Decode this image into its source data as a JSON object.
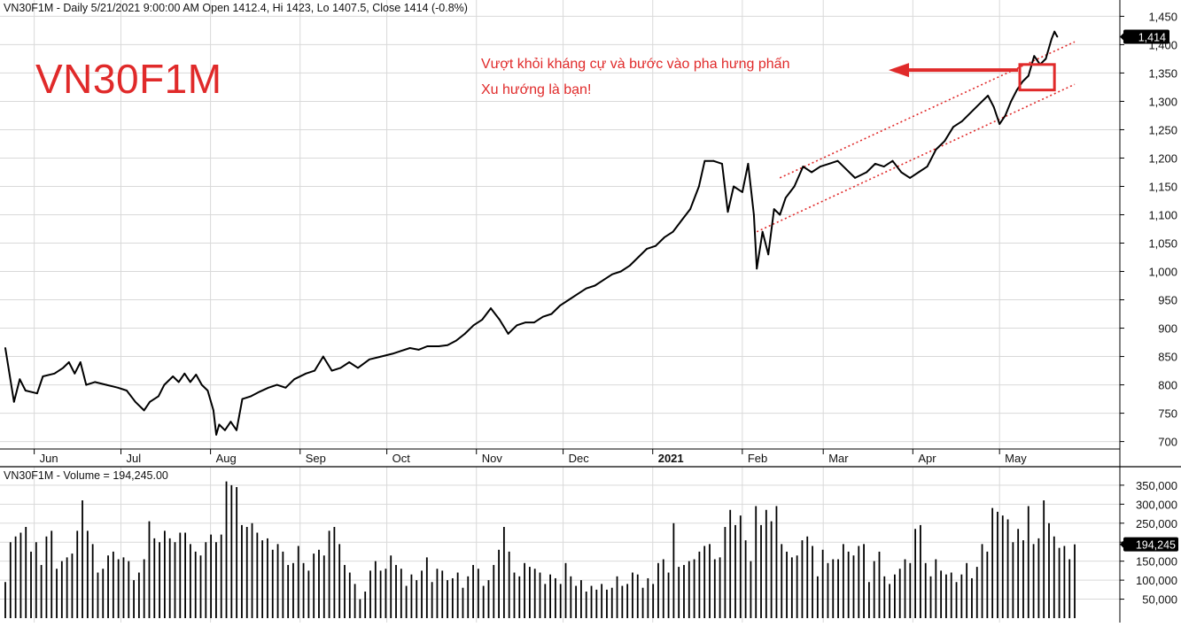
{
  "price_panel": {
    "header": "VN30F1M - Daily 5/21/2021 9:00:00 AM Open 1412.4, Hi 1423, Lo 1407.5, Close 1414 (-0.8%)",
    "symbol_label": "VN30F1M",
    "last_price_badge": "1,414",
    "annotation_line1": "Vượt khỏi kháng cự và bước vào pha hưng phấn",
    "annotation_line2": "Xu hướng là bạn!"
  },
  "volume_panel": {
    "header": "VN30F1M - Volume = 194,245.00",
    "last_volume_badge": "194,245"
  },
  "colors": {
    "price_line": "#000000",
    "volume_bars": "#000000",
    "grid": "#d9d9d9",
    "annotation": "#e02a2a",
    "badge_bg": "#000000",
    "badge_text": "#ffffff"
  },
  "chart_data": [
    {
      "type": "line",
      "name": "price",
      "ylim": [
        690,
        1460
      ],
      "y_ticks": [
        700,
        750,
        800,
        850,
        900,
        950,
        1000,
        1050,
        1100,
        1150,
        1200,
        1250,
        1300,
        1350,
        1400,
        1450
      ],
      "y_tick_labels": [
        "700",
        "750",
        "800",
        "850",
        "900",
        "950",
        "1,000",
        "1,050",
        "1,100",
        "1,150",
        "1,200",
        "1,250",
        "1,300",
        "1,350",
        "1,400",
        "1,450"
      ],
      "x_tick_labels": [
        "Jun",
        "Jul",
        "Aug",
        "Sep",
        "Oct",
        "Nov",
        "Dec",
        "2021",
        "Feb",
        "Mar",
        "Apr",
        "May"
      ],
      "x_ticks": [
        "2020-06-01",
        "2020-07-01",
        "2020-08-01",
        "2020-09-01",
        "2020-10-01",
        "2020-11-01",
        "2020-12-01",
        "2021-01-01",
        "2021-02-01",
        "2021-03-01",
        "2021-04-01",
        "2021-05-01"
      ],
      "x_start": "2020-05-22",
      "x_end": "2021-05-27",
      "grid": true,
      "points": [
        [
          "2020-05-22",
          865
        ],
        [
          "2020-05-25",
          770
        ],
        [
          "2020-05-27",
          810
        ],
        [
          "2020-05-29",
          790
        ],
        [
          "2020-06-02",
          785
        ],
        [
          "2020-06-04",
          815
        ],
        [
          "2020-06-08",
          820
        ],
        [
          "2020-06-11",
          830
        ],
        [
          "2020-06-13",
          840
        ],
        [
          "2020-06-15",
          820
        ],
        [
          "2020-06-17",
          840
        ],
        [
          "2020-06-19",
          800
        ],
        [
          "2020-06-22",
          805
        ],
        [
          "2020-06-26",
          800
        ],
        [
          "2020-06-30",
          795
        ],
        [
          "2020-07-03",
          790
        ],
        [
          "2020-07-06",
          770
        ],
        [
          "2020-07-09",
          755
        ],
        [
          "2020-07-11",
          770
        ],
        [
          "2020-07-14",
          780
        ],
        [
          "2020-07-16",
          800
        ],
        [
          "2020-07-19",
          815
        ],
        [
          "2020-07-21",
          805
        ],
        [
          "2020-07-23",
          820
        ],
        [
          "2020-07-25",
          805
        ],
        [
          "2020-07-27",
          818
        ],
        [
          "2020-07-29",
          800
        ],
        [
          "2020-07-31",
          790
        ],
        [
          "2020-08-02",
          755
        ],
        [
          "2020-08-03",
          712
        ],
        [
          "2020-08-04",
          730
        ],
        [
          "2020-08-06",
          720
        ],
        [
          "2020-08-08",
          735
        ],
        [
          "2020-08-10",
          720
        ],
        [
          "2020-08-12",
          775
        ],
        [
          "2020-08-15",
          780
        ],
        [
          "2020-08-18",
          788
        ],
        [
          "2020-08-21",
          795
        ],
        [
          "2020-08-24",
          800
        ],
        [
          "2020-08-27",
          795
        ],
        [
          "2020-08-30",
          810
        ],
        [
          "2020-09-03",
          820
        ],
        [
          "2020-09-06",
          825
        ],
        [
          "2020-09-09",
          850
        ],
        [
          "2020-09-12",
          825
        ],
        [
          "2020-09-15",
          830
        ],
        [
          "2020-09-18",
          840
        ],
        [
          "2020-09-21",
          830
        ],
        [
          "2020-09-25",
          845
        ],
        [
          "2020-09-29",
          850
        ],
        [
          "2020-10-03",
          855
        ],
        [
          "2020-10-06",
          860
        ],
        [
          "2020-10-09",
          865
        ],
        [
          "2020-10-12",
          862
        ],
        [
          "2020-10-15",
          868
        ],
        [
          "2020-10-19",
          868
        ],
        [
          "2020-10-22",
          870
        ],
        [
          "2020-10-25",
          878
        ],
        [
          "2020-10-28",
          890
        ],
        [
          "2020-10-31",
          905
        ],
        [
          "2020-11-03",
          915
        ],
        [
          "2020-11-06",
          935
        ],
        [
          "2020-11-09",
          915
        ],
        [
          "2020-11-12",
          890
        ],
        [
          "2020-11-15",
          905
        ],
        [
          "2020-11-18",
          910
        ],
        [
          "2020-11-21",
          910
        ],
        [
          "2020-11-24",
          920
        ],
        [
          "2020-11-27",
          925
        ],
        [
          "2020-11-30",
          940
        ],
        [
          "2020-12-03",
          950
        ],
        [
          "2020-12-06",
          960
        ],
        [
          "2020-12-09",
          970
        ],
        [
          "2020-12-12",
          975
        ],
        [
          "2020-12-15",
          985
        ],
        [
          "2020-12-18",
          995
        ],
        [
          "2020-12-21",
          1000
        ],
        [
          "2020-12-24",
          1010
        ],
        [
          "2020-12-27",
          1025
        ],
        [
          "2020-12-30",
          1040
        ],
        [
          "2021-01-02",
          1045
        ],
        [
          "2021-01-05",
          1060
        ],
        [
          "2021-01-08",
          1070
        ],
        [
          "2021-01-11",
          1090
        ],
        [
          "2021-01-14",
          1110
        ],
        [
          "2021-01-17",
          1150
        ],
        [
          "2021-01-19",
          1195
        ],
        [
          "2021-01-22",
          1195
        ],
        [
          "2021-01-25",
          1190
        ],
        [
          "2021-01-27",
          1105
        ],
        [
          "2021-01-29",
          1150
        ],
        [
          "2021-02-01",
          1140
        ],
        [
          "2021-02-03",
          1190
        ],
        [
          "2021-02-05",
          1100
        ],
        [
          "2021-02-06",
          1005
        ],
        [
          "2021-02-08",
          1070
        ],
        [
          "2021-02-10",
          1030
        ],
        [
          "2021-02-12",
          1110
        ],
        [
          "2021-02-14",
          1100
        ],
        [
          "2021-02-16",
          1130
        ],
        [
          "2021-02-19",
          1150
        ],
        [
          "2021-02-22",
          1185
        ],
        [
          "2021-02-25",
          1175
        ],
        [
          "2021-02-28",
          1185
        ],
        [
          "2021-03-03",
          1190
        ],
        [
          "2021-03-06",
          1195
        ],
        [
          "2021-03-09",
          1180
        ],
        [
          "2021-03-12",
          1165
        ],
        [
          "2021-03-16",
          1175
        ],
        [
          "2021-03-19",
          1190
        ],
        [
          "2021-03-22",
          1185
        ],
        [
          "2021-03-25",
          1195
        ],
        [
          "2021-03-28",
          1175
        ],
        [
          "2021-03-31",
          1165
        ],
        [
          "2021-04-03",
          1175
        ],
        [
          "2021-04-06",
          1185
        ],
        [
          "2021-04-09",
          1215
        ],
        [
          "2021-04-12",
          1230
        ],
        [
          "2021-04-15",
          1255
        ],
        [
          "2021-04-18",
          1265
        ],
        [
          "2021-04-21",
          1280
        ],
        [
          "2021-04-24",
          1295
        ],
        [
          "2021-04-27",
          1310
        ],
        [
          "2021-04-29",
          1290
        ],
        [
          "2021-05-01",
          1260
        ],
        [
          "2021-05-03",
          1275
        ],
        [
          "2021-05-05",
          1300
        ],
        [
          "2021-05-07",
          1320
        ],
        [
          "2021-05-09",
          1335
        ],
        [
          "2021-05-11",
          1345
        ],
        [
          "2021-05-13",
          1380
        ],
        [
          "2021-05-15",
          1365
        ],
        [
          "2021-05-17",
          1375
        ],
        [
          "2021-05-19",
          1410
        ],
        [
          "2021-05-20",
          1423
        ],
        [
          "2021-05-21",
          1414
        ]
      ],
      "trendlines": [
        {
          "from": [
            "2021-02-14",
            1165
          ],
          "to": [
            "2021-05-27",
            1405
          ]
        },
        {
          "from": [
            "2021-02-06",
            1070
          ],
          "to": [
            "2021-05-27",
            1330
          ]
        }
      ],
      "highlight_box": {
        "from": [
          "2021-05-08",
          1320
        ],
        "to": [
          "2021-05-20",
          1365
        ]
      }
    },
    {
      "type": "bar",
      "name": "volume",
      "ylim": [
        0,
        380000
      ],
      "y_ticks": [
        50000,
        100000,
        150000,
        200000,
        250000,
        300000,
        350000
      ],
      "y_tick_labels": [
        "50,000",
        "100,000",
        "150,000",
        "200,000",
        "250,000",
        "300,000",
        "350,000"
      ],
      "bar_spacing": "daily",
      "values": [
        95000,
        200000,
        215000,
        225000,
        240000,
        175000,
        200000,
        140000,
        215000,
        230000,
        130000,
        150000,
        160000,
        170000,
        230000,
        310000,
        230000,
        195000,
        120000,
        130000,
        165000,
        175000,
        155000,
        160000,
        150000,
        100000,
        120000,
        155000,
        255000,
        210000,
        200000,
        230000,
        210000,
        200000,
        225000,
        225000,
        195000,
        175000,
        165000,
        200000,
        220000,
        200000,
        220000,
        360000,
        350000,
        345000,
        245000,
        240000,
        250000,
        225000,
        205000,
        210000,
        180000,
        195000,
        175000,
        140000,
        145000,
        190000,
        145000,
        125000,
        170000,
        180000,
        165000,
        230000,
        240000,
        195000,
        140000,
        120000,
        90000,
        50000,
        70000,
        125000,
        150000,
        125000,
        130000,
        165000,
        140000,
        130000,
        85000,
        115000,
        100000,
        125000,
        160000,
        95000,
        130000,
        125000,
        100000,
        105000,
        120000,
        80000,
        110000,
        140000,
        130000,
        85000,
        100000,
        140000,
        180000,
        240000,
        175000,
        120000,
        110000,
        145000,
        135000,
        130000,
        120000,
        90000,
        115000,
        105000,
        90000,
        145000,
        110000,
        85000,
        100000,
        70000,
        85000,
        75000,
        90000,
        75000,
        80000,
        110000,
        85000,
        90000,
        120000,
        115000,
        80000,
        105000,
        90000,
        145000,
        155000,
        120000,
        250000,
        135000,
        140000,
        150000,
        155000,
        175000,
        190000,
        195000,
        155000,
        160000,
        240000,
        285000,
        245000,
        270000,
        205000,
        150000,
        295000,
        245000,
        285000,
        255000,
        295000,
        195000,
        175000,
        160000,
        165000,
        205000,
        215000,
        190000,
        110000,
        180000,
        145000,
        155000,
        155000,
        195000,
        175000,
        165000,
        190000,
        195000,
        95000,
        150000,
        175000,
        110000,
        90000,
        115000,
        130000,
        155000,
        145000,
        235000,
        245000,
        145000,
        110000,
        155000,
        125000,
        115000,
        120000,
        95000,
        115000,
        145000,
        105000,
        135000,
        195000,
        175000,
        290000,
        280000,
        270000,
        260000,
        200000,
        235000,
        205000,
        295000,
        195000,
        210000,
        310000,
        250000,
        215000,
        185000,
        190000,
        155000,
        194245
      ]
    }
  ]
}
